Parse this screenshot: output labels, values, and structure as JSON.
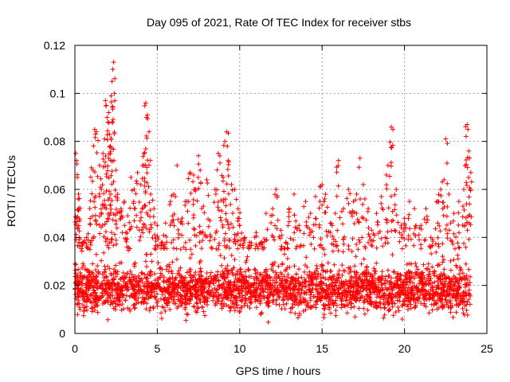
{
  "chart_data": {
    "type": "scatter",
    "title": "Day 095 of 2021, Rate Of TEC Index for receiver stbs",
    "xlabel": "GPS time / hours",
    "ylabel": "ROTI / TECUs",
    "xlim": [
      0,
      25
    ],
    "ylim": [
      0,
      0.12
    ],
    "xticks": [
      0,
      5,
      10,
      15,
      20,
      25
    ],
    "xtick_labels": [
      "0",
      "5",
      "10",
      "15",
      "20",
      "25"
    ],
    "yticks": [
      0,
      0.02,
      0.04,
      0.06,
      0.08,
      0.1,
      0.12
    ],
    "ytick_labels": [
      "0",
      "0.02",
      "0.04",
      "0.06",
      "0.08",
      "0.1",
      "0.12"
    ],
    "grid": true,
    "marker": "+",
    "color": "#ff0000",
    "series": [
      {
        "name": "ROTI",
        "points": [
          [
            0.05,
            0.075
          ],
          [
            0.1,
            0.072
          ],
          [
            0.15,
            0.065
          ],
          [
            0.2,
            0.056
          ],
          [
            0.3,
            0.047
          ],
          [
            0.5,
            0.038
          ],
          [
            0.7,
            0.04
          ],
          [
            0.9,
            0.052
          ],
          [
            1.0,
            0.069
          ],
          [
            1.1,
            0.068
          ],
          [
            1.2,
            0.085
          ],
          [
            1.3,
            0.084
          ],
          [
            1.5,
            0.07
          ],
          [
            1.6,
            0.06
          ],
          [
            1.7,
            0.075
          ],
          [
            1.8,
            0.081
          ],
          [
            1.85,
            0.097
          ],
          [
            1.9,
            0.095
          ],
          [
            1.95,
            0.09
          ],
          [
            2.0,
            0.088
          ],
          [
            2.05,
            0.092
          ],
          [
            2.1,
            0.083
          ],
          [
            2.15,
            0.078
          ],
          [
            2.2,
            0.099
          ],
          [
            2.25,
            0.105
          ],
          [
            2.3,
            0.11
          ],
          [
            2.35,
            0.113
          ],
          [
            2.4,
            0.1
          ],
          [
            2.5,
            0.068
          ],
          [
            2.6,
            0.058
          ],
          [
            2.8,
            0.052
          ],
          [
            3.0,
            0.055
          ],
          [
            3.2,
            0.049
          ],
          [
            3.4,
            0.065
          ],
          [
            3.6,
            0.06
          ],
          [
            3.8,
            0.067
          ],
          [
            4.0,
            0.062
          ],
          [
            4.1,
            0.07
          ],
          [
            4.2,
            0.075
          ],
          [
            4.3,
            0.096
          ],
          [
            4.35,
            0.09
          ],
          [
            4.4,
            0.091
          ],
          [
            4.5,
            0.084
          ],
          [
            4.6,
            0.058
          ],
          [
            4.8,
            0.052
          ],
          [
            5.0,
            0.045
          ],
          [
            5.3,
            0.038
          ],
          [
            5.5,
            0.046
          ],
          [
            5.8,
            0.055
          ],
          [
            6.0,
            0.058
          ],
          [
            6.2,
            0.07
          ],
          [
            6.5,
            0.048
          ],
          [
            6.8,
            0.055
          ],
          [
            7.0,
            0.067
          ],
          [
            7.2,
            0.066
          ],
          [
            7.3,
            0.06
          ],
          [
            7.5,
            0.074
          ],
          [
            7.6,
            0.068
          ],
          [
            7.8,
            0.053
          ],
          [
            8.0,
            0.064
          ],
          [
            8.2,
            0.047
          ],
          [
            8.5,
            0.06
          ],
          [
            8.7,
            0.075
          ],
          [
            8.8,
            0.071
          ],
          [
            9.0,
            0.065
          ],
          [
            9.1,
            0.08
          ],
          [
            9.2,
            0.084
          ],
          [
            9.25,
            0.078
          ],
          [
            9.3,
            0.072
          ],
          [
            9.5,
            0.062
          ],
          [
            9.7,
            0.06
          ],
          [
            9.9,
            0.052
          ],
          [
            10.0,
            0.045
          ],
          [
            10.3,
            0.04
          ],
          [
            10.6,
            0.038
          ],
          [
            11.0,
            0.042
          ],
          [
            11.3,
            0.038
          ],
          [
            11.6,
            0.05
          ],
          [
            12.0,
            0.052
          ],
          [
            12.2,
            0.06
          ],
          [
            12.5,
            0.043
          ],
          [
            12.8,
            0.038
          ],
          [
            13.0,
            0.052
          ],
          [
            13.3,
            0.058
          ],
          [
            13.6,
            0.045
          ],
          [
            14.0,
            0.055
          ],
          [
            14.3,
            0.05
          ],
          [
            14.6,
            0.057
          ],
          [
            14.9,
            0.061
          ],
          [
            15.0,
            0.062
          ],
          [
            15.2,
            0.058
          ],
          [
            15.5,
            0.046
          ],
          [
            15.8,
            0.05
          ],
          [
            16.0,
            0.072
          ],
          [
            16.3,
            0.052
          ],
          [
            16.6,
            0.06
          ],
          [
            16.9,
            0.055
          ],
          [
            17.1,
            0.058
          ],
          [
            17.3,
            0.073
          ],
          [
            17.5,
            0.062
          ],
          [
            17.8,
            0.052
          ],
          [
            18.0,
            0.043
          ],
          [
            18.3,
            0.05
          ],
          [
            18.6,
            0.057
          ],
          [
            18.9,
            0.066
          ],
          [
            19.0,
            0.07
          ],
          [
            19.2,
            0.086
          ],
          [
            19.3,
            0.085
          ],
          [
            19.5,
            0.06
          ],
          [
            19.8,
            0.045
          ],
          [
            20.0,
            0.048
          ],
          [
            20.3,
            0.055
          ],
          [
            20.6,
            0.052
          ],
          [
            21.0,
            0.045
          ],
          [
            21.3,
            0.052
          ],
          [
            21.6,
            0.04
          ],
          [
            22.0,
            0.055
          ],
          [
            22.2,
            0.06
          ],
          [
            22.4,
            0.064
          ],
          [
            22.5,
            0.081
          ],
          [
            22.7,
            0.058
          ],
          [
            23.0,
            0.05
          ],
          [
            23.3,
            0.055
          ],
          [
            23.6,
            0.06
          ],
          [
            23.8,
            0.087
          ],
          [
            23.85,
            0.085
          ],
          [
            23.9,
            0.076
          ],
          [
            23.95,
            0.073
          ],
          [
            24.0,
            0.06
          ]
        ]
      }
    ],
    "baseline_band": {
      "description": "dense cloud of points spanning the full time range",
      "x_range": [
        0,
        24
      ],
      "y_low": 0.007,
      "y_high": 0.035,
      "y_center": 0.018
    }
  }
}
